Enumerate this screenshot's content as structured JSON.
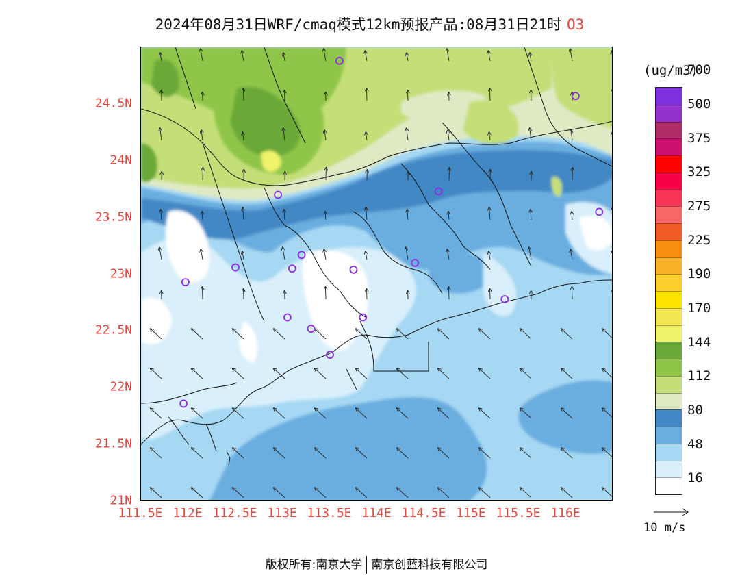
{
  "title": {
    "main": "2024年08月31日WRF/cmaq模式12km预报产品:08月31日21时",
    "species": "O3"
  },
  "axes": {
    "lat_labels": [
      "21N",
      "21.5N",
      "22N",
      "22.5N",
      "23N",
      "23.5N",
      "24N",
      "24.5N"
    ],
    "lat_values": [
      21,
      21.5,
      22,
      22.5,
      23,
      23.5,
      24,
      24.5
    ],
    "lon_labels": [
      "111.5E",
      "112E",
      "112.5E",
      "113E",
      "113.5E",
      "114E",
      "114.5E",
      "115E",
      "115.5E",
      "116E"
    ],
    "lon_values": [
      111.5,
      112,
      112.5,
      113,
      113.5,
      114,
      114.5,
      115,
      115.5,
      116
    ],
    "lon_range": [
      111.5,
      116.5
    ],
    "lat_range": [
      21.0,
      25.0
    ]
  },
  "legend": {
    "unit": "(ug/m3)",
    "labels": [
      "16",
      "48",
      "80",
      "112",
      "144",
      "170",
      "190",
      "225",
      "275",
      "325",
      "375",
      "500",
      "700"
    ],
    "colors": [
      "#ffffff",
      "#d9effb",
      "#a6d8f3",
      "#6aaee0",
      "#4288c4",
      "#dfeac4",
      "#c5df78",
      "#8fc648",
      "#6aa838",
      "#eef36a",
      "#f4e650",
      "#fde400",
      "#fbcf2e",
      "#fbb02a",
      "#f98f10",
      "#f05c28",
      "#f86868",
      "#f73658",
      "#f70046",
      "#ff0000",
      "#cc1171",
      "#ad2c66",
      "#9231cc",
      "#7e2fe0"
    ]
  },
  "wind_reference": {
    "label": "10 m/s"
  },
  "footer": {
    "left": "版权所有:南京大学",
    "right": "南京创蓝科技有限公司"
  },
  "stations": [
    [
      113.6,
      24.88
    ],
    [
      116.1,
      24.57
    ],
    [
      112.95,
      23.7
    ],
    [
      114.65,
      23.73
    ],
    [
      116.35,
      23.55
    ],
    [
      113.2,
      23.17
    ],
    [
      112.5,
      23.06
    ],
    [
      113.1,
      23.05
    ],
    [
      113.75,
      23.04
    ],
    [
      114.4,
      23.1
    ],
    [
      111.97,
      22.93
    ],
    [
      115.35,
      22.78
    ],
    [
      113.05,
      22.62
    ],
    [
      113.85,
      22.62
    ],
    [
      113.3,
      22.52
    ],
    [
      113.5,
      22.29
    ],
    [
      111.95,
      21.86
    ]
  ]
}
